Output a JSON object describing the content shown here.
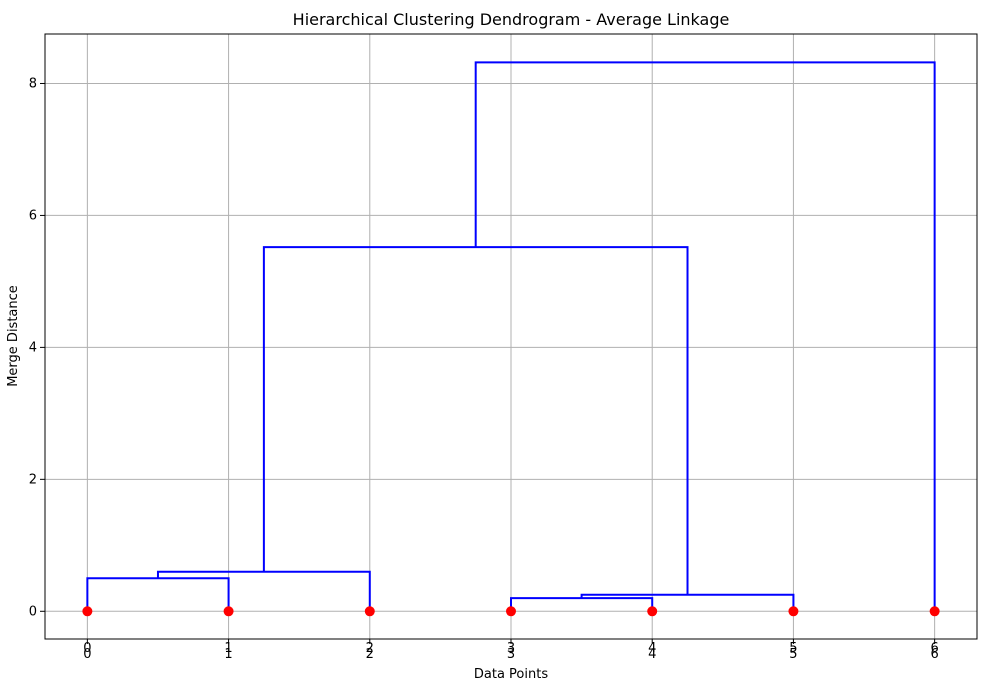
{
  "chart_data": {
    "type": "dendrogram",
    "title": "Hierarchical Clustering Dendrogram - Average Linkage",
    "xlabel": "Data Points",
    "ylabel": "Merge Distance",
    "xlim": [
      -0.3,
      6.3
    ],
    "ylim": [
      -0.42,
      8.75
    ],
    "x_ticks": [
      0,
      1,
      2,
      3,
      4,
      5,
      6
    ],
    "x_tick_labels_top": [
      "0",
      "1",
      "2",
      "3",
      "4",
      "5",
      "6"
    ],
    "x_tick_labels_bottom": [
      "0",
      "1",
      "2",
      "3",
      "4",
      "5",
      "6"
    ],
    "y_ticks": [
      0,
      2,
      4,
      6,
      8
    ],
    "y_tick_labels": [
      "0",
      "2",
      "4",
      "6",
      "8"
    ],
    "grid": true,
    "leaves": [
      {
        "x": 0,
        "y": 0
      },
      {
        "x": 1,
        "y": 0
      },
      {
        "x": 2,
        "y": 0
      },
      {
        "x": 3,
        "y": 0
      },
      {
        "x": 4,
        "y": 0
      },
      {
        "x": 5,
        "y": 0
      },
      {
        "x": 6,
        "y": 0
      }
    ],
    "merges": [
      {
        "x1": 0,
        "y1": 0,
        "x2": 1,
        "y2": 0,
        "height": 0.5
      },
      {
        "x1": 0.5,
        "y1": 0.5,
        "x2": 2,
        "y2": 0,
        "height": 0.6
      },
      {
        "x1": 3,
        "y1": 0,
        "x2": 4,
        "y2": 0,
        "height": 0.2
      },
      {
        "x1": 3.5,
        "y1": 0.2,
        "x2": 5,
        "y2": 0,
        "height": 0.25
      },
      {
        "x1": 1.25,
        "y1": 0.6,
        "x2": 4.25,
        "y2": 0.25,
        "height": 5.52
      },
      {
        "x1": 2.75,
        "y1": 5.52,
        "x2": 6,
        "y2": 0,
        "height": 8.32
      }
    ],
    "link_color": "#0000ff",
    "leaf_color": "#ff0000",
    "grid_color": "#b0b0b0"
  }
}
